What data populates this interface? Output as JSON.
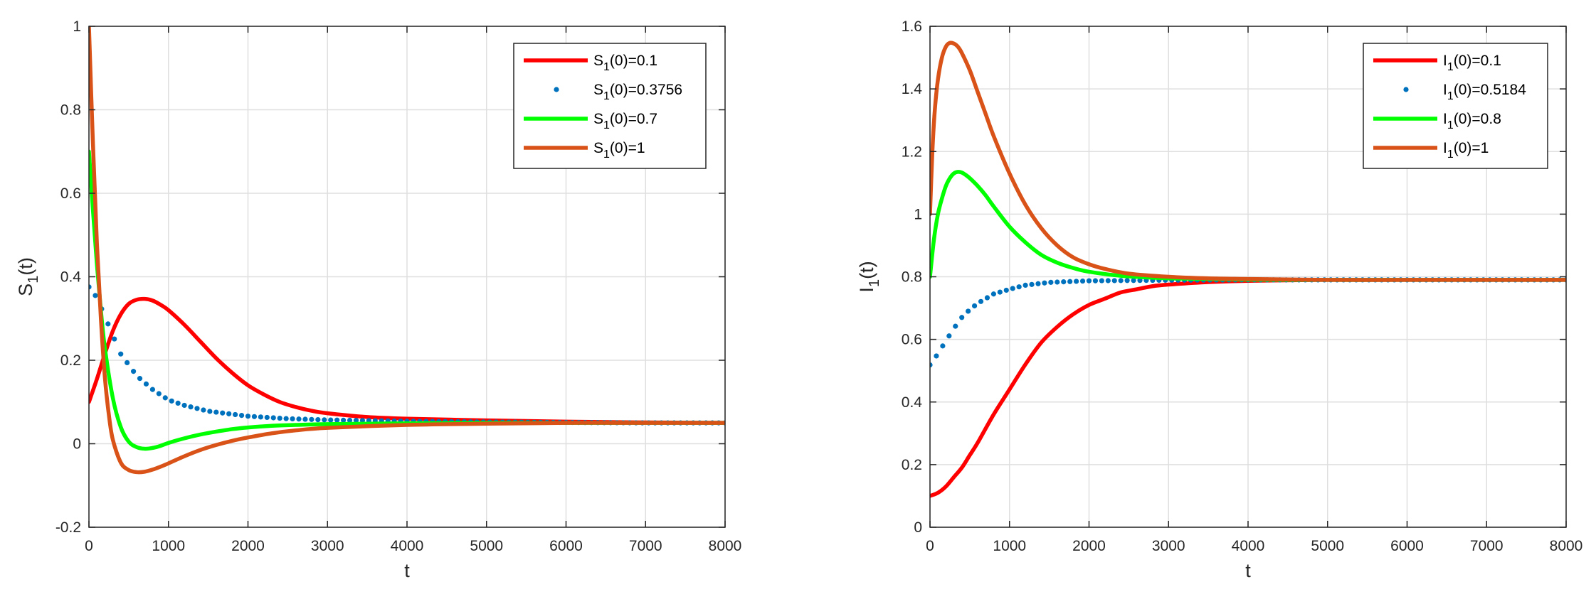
{
  "chart_data": [
    {
      "type": "line",
      "xlabel": "t",
      "ylabel": {
        "base": "S",
        "sub": "1",
        "suffix": "(t)"
      },
      "xlim": [
        0,
        8000
      ],
      "ylim": [
        -0.2,
        1
      ],
      "xticks": [
        0,
        1000,
        2000,
        3000,
        4000,
        5000,
        6000,
        7000,
        8000
      ],
      "yticks": [
        -0.2,
        0,
        0.2,
        0.4,
        0.6,
        0.8,
        1
      ],
      "grid": true,
      "legend_position": "top-right",
      "series": [
        {
          "name": "S1(0)=0.1",
          "legend": {
            "base": "S",
            "sub": "1",
            "suffix": "(0)=0.1"
          },
          "style": "line",
          "color": "#ff0000",
          "x": [
            0,
            100,
            200,
            300,
            400,
            500,
            600,
            700,
            800,
            900,
            1000,
            1200,
            1400,
            1600,
            1800,
            2000,
            2200,
            2400,
            2600,
            2800,
            3000,
            3500,
            4000,
            5000,
            6000,
            7000,
            8000
          ],
          "y": [
            0.1,
            0.155,
            0.215,
            0.27,
            0.31,
            0.335,
            0.345,
            0.347,
            0.343,
            0.333,
            0.32,
            0.285,
            0.245,
            0.205,
            0.17,
            0.14,
            0.118,
            0.1,
            0.088,
            0.079,
            0.073,
            0.064,
            0.06,
            0.056,
            0.053,
            0.051,
            0.05
          ]
        },
        {
          "name": "S1(0)=0.3756",
          "legend": {
            "base": "S",
            "sub": "1",
            "suffix": "(0)=0.3756"
          },
          "style": "dots",
          "color": "#0072bd",
          "x": [
            0,
            100,
            200,
            300,
            400,
            600,
            800,
            1000,
            1200,
            1500,
            2000,
            2500,
            3000,
            4000,
            5000,
            6000,
            7000,
            8000
          ],
          "y": [
            0.3756,
            0.35,
            0.305,
            0.26,
            0.215,
            0.163,
            0.13,
            0.105,
            0.092,
            0.078,
            0.066,
            0.06,
            0.057,
            0.054,
            0.052,
            0.051,
            0.05,
            0.05
          ]
        },
        {
          "name": "S1(0)=0.7",
          "legend": {
            "base": "S",
            "sub": "1",
            "suffix": "(0)=0.7"
          },
          "style": "line",
          "color": "#00ff00",
          "x": [
            0,
            50,
            100,
            150,
            200,
            300,
            400,
            500,
            600,
            700,
            800,
            900,
            1000,
            1200,
            1400,
            1600,
            1800,
            2000,
            2300,
            2600,
            3000,
            4000,
            5000,
            6000,
            7000,
            8000
          ],
          "y": [
            0.7,
            0.56,
            0.43,
            0.32,
            0.23,
            0.11,
            0.04,
            0.005,
            -0.008,
            -0.012,
            -0.01,
            -0.005,
            0.002,
            0.013,
            0.022,
            0.029,
            0.035,
            0.039,
            0.043,
            0.045,
            0.047,
            0.049,
            0.05,
            0.05,
            0.05,
            0.05
          ]
        },
        {
          "name": "S1(0)=1",
          "legend": {
            "base": "S",
            "sub": "1",
            "suffix": "(0)=1"
          },
          "style": "line",
          "color": "#d95319",
          "x": [
            0,
            50,
            100,
            150,
            200,
            250,
            300,
            400,
            500,
            600,
            700,
            800,
            900,
            1000,
            1200,
            1400,
            1600,
            1800,
            2000,
            2300,
            2600,
            3000,
            4000,
            5000,
            6000,
            7000,
            8000
          ],
          "y": [
            1.0,
            0.72,
            0.48,
            0.3,
            0.16,
            0.07,
            0.01,
            -0.045,
            -0.063,
            -0.068,
            -0.067,
            -0.062,
            -0.055,
            -0.047,
            -0.03,
            -0.015,
            -0.003,
            0.007,
            0.015,
            0.025,
            0.032,
            0.038,
            0.045,
            0.048,
            0.05,
            0.05,
            0.05
          ]
        }
      ]
    },
    {
      "type": "line",
      "xlabel": "t",
      "ylabel": {
        "base": "I",
        "sub": "1",
        "suffix": "(t)"
      },
      "xlim": [
        0,
        8000
      ],
      "ylim": [
        0,
        1.6
      ],
      "xticks": [
        0,
        1000,
        2000,
        3000,
        4000,
        5000,
        6000,
        7000,
        8000
      ],
      "yticks": [
        0,
        0.2,
        0.4,
        0.6,
        0.8,
        1,
        1.2,
        1.4,
        1.6
      ],
      "grid": true,
      "legend_position": "top-right",
      "series": [
        {
          "name": "I1(0)=0.1",
          "legend": {
            "base": "I",
            "sub": "1",
            "suffix": "(0)=0.1"
          },
          "style": "line",
          "color": "#ff0000",
          "x": [
            0,
            100,
            200,
            300,
            400,
            500,
            600,
            800,
            1000,
            1200,
            1400,
            1600,
            1800,
            2000,
            2200,
            2400,
            2600,
            2800,
            3000,
            3500,
            4000,
            5000,
            6000,
            7000,
            8000
          ],
          "y": [
            0.1,
            0.11,
            0.13,
            0.16,
            0.19,
            0.23,
            0.27,
            0.36,
            0.44,
            0.52,
            0.59,
            0.64,
            0.68,
            0.71,
            0.73,
            0.75,
            0.76,
            0.77,
            0.775,
            0.783,
            0.787,
            0.79,
            0.79,
            0.79,
            0.79
          ]
        },
        {
          "name": "I1(0)=0.5184",
          "legend": {
            "base": "I",
            "sub": "1",
            "suffix": "(0)=0.5184"
          },
          "style": "dots",
          "color": "#0072bd",
          "x": [
            0,
            50,
            100,
            150,
            200,
            300,
            400,
            500,
            600,
            700,
            800,
            1000,
            1200,
            1500,
            2000,
            3000,
            4000,
            5000,
            6000,
            7000,
            8000
          ],
          "y": [
            0.5184,
            0.535,
            0.555,
            0.575,
            0.595,
            0.635,
            0.67,
            0.695,
            0.715,
            0.73,
            0.745,
            0.76,
            0.773,
            0.782,
            0.787,
            0.789,
            0.79,
            0.79,
            0.79,
            0.79,
            0.79
          ]
        },
        {
          "name": "I1(0)=0.8",
          "legend": {
            "base": "I",
            "sub": "1",
            "suffix": "(0)=0.8"
          },
          "style": "line",
          "color": "#00ff00",
          "x": [
            0,
            50,
            100,
            150,
            200,
            250,
            300,
            350,
            400,
            450,
            500,
            600,
            700,
            800,
            1000,
            1200,
            1400,
            1600,
            1800,
            2000,
            2400,
            2800,
            3200,
            4000,
            5000,
            6000,
            7000,
            8000
          ],
          "y": [
            0.8,
            0.92,
            1.0,
            1.05,
            1.09,
            1.115,
            1.13,
            1.135,
            1.133,
            1.125,
            1.115,
            1.09,
            1.06,
            1.025,
            0.96,
            0.91,
            0.87,
            0.845,
            0.828,
            0.816,
            0.803,
            0.797,
            0.794,
            0.791,
            0.79,
            0.79,
            0.79,
            0.79
          ]
        },
        {
          "name": "I1(0)=1",
          "legend": {
            "base": "I",
            "sub": "1",
            "suffix": "(0)=1"
          },
          "style": "line",
          "color": "#d95319",
          "x": [
            0,
            30,
            60,
            100,
            150,
            200,
            250,
            300,
            350,
            400,
            500,
            600,
            700,
            800,
            1000,
            1200,
            1400,
            1600,
            1800,
            2000,
            2200,
            2500,
            3000,
            3500,
            4000,
            5000,
            6000,
            7000,
            8000
          ],
          "y": [
            1.0,
            1.2,
            1.33,
            1.43,
            1.5,
            1.535,
            1.547,
            1.545,
            1.535,
            1.515,
            1.46,
            1.39,
            1.32,
            1.25,
            1.13,
            1.03,
            0.955,
            0.9,
            0.862,
            0.84,
            0.825,
            0.81,
            0.8,
            0.795,
            0.793,
            0.79,
            0.79,
            0.79,
            0.79
          ]
        }
      ]
    }
  ]
}
